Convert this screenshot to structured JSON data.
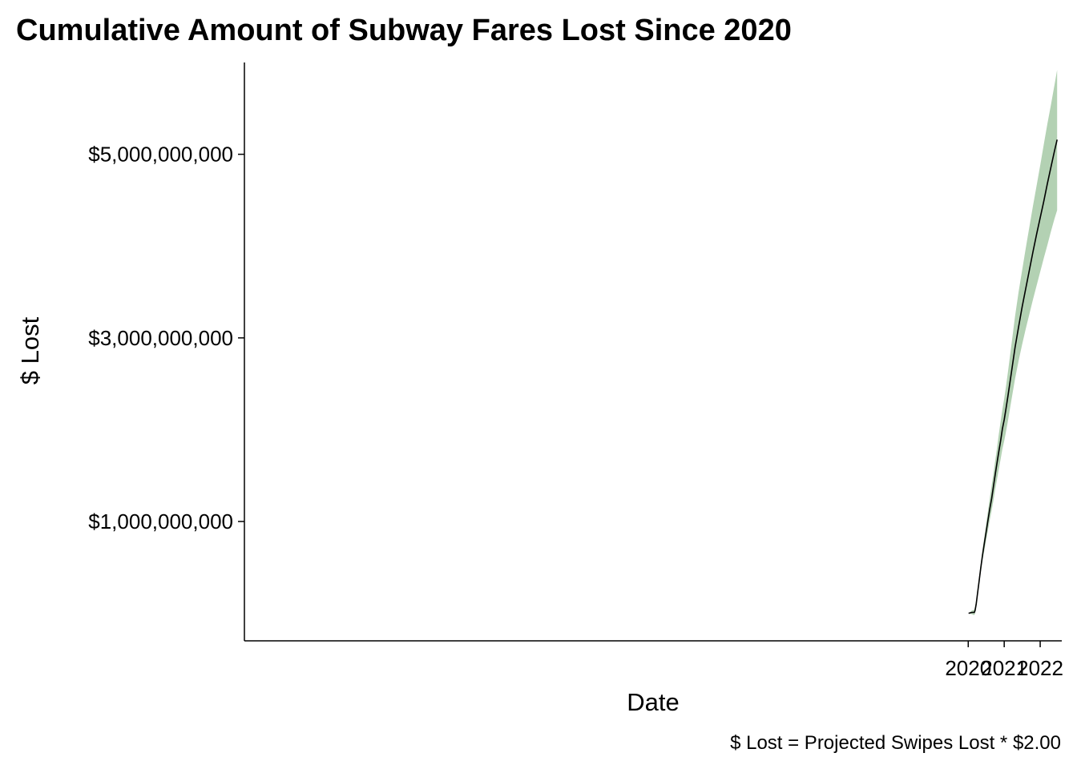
{
  "chart_data": {
    "type": "area",
    "title": "Cumulative Amount of Subway Fares Lost Since 2020",
    "xlabel": "Date",
    "ylabel": "$ Lost",
    "caption": "$ Lost = Projected Swipes Lost * $2.00",
    "x_ticks": [
      {
        "value": 2020,
        "label": "2020"
      },
      {
        "value": 2021,
        "label": "2021"
      },
      {
        "value": 2022,
        "label": "2022"
      }
    ],
    "y_ticks": [
      {
        "value": 1000000000,
        "label": "$1,000,000,000"
      },
      {
        "value": 3000000000,
        "label": "$3,000,000,000"
      },
      {
        "value": 5000000000,
        "label": "$5,000,000,000"
      }
    ],
    "xlim": [
      1999.88,
      2022.6
    ],
    "ylim": [
      -300000000,
      6000000000
    ],
    "grid": false,
    "colors": {
      "band": "#b3d1b3",
      "line": "#000000"
    },
    "series": [
      {
        "x": [
          2020.01,
          2020.1,
          2020.17,
          2020.19,
          2020.22,
          2020.25,
          2020.3,
          2020.35,
          2020.4,
          2020.45,
          2020.5,
          2020.55,
          2020.6,
          2020.65,
          2020.7,
          2020.75,
          2020.8,
          2020.85,
          2020.9,
          2020.95,
          2021.0,
          2021.05,
          2021.1,
          2021.2,
          2021.3,
          2021.4,
          2021.5,
          2021.6,
          2021.7,
          2021.8,
          2021.9,
          2022.0,
          2022.1,
          2022.2,
          2022.3,
          2022.4,
          2022.47
        ],
        "y": [
          0,
          10000000,
          10000000,
          30000000,
          100000000,
          190000000,
          340000000,
          500000000,
          640000000,
          770000000,
          890000000,
          1020000000,
          1140000000,
          1250000000,
          1380000000,
          1510000000,
          1640000000,
          1760000000,
          1880000000,
          2010000000,
          2110000000,
          2230000000,
          2360000000,
          2620000000,
          2890000000,
          3120000000,
          3340000000,
          3540000000,
          3740000000,
          3940000000,
          4130000000,
          4310000000,
          4490000000,
          4680000000,
          4860000000,
          5040000000,
          5160000000
        ],
        "lower": [
          0,
          -10000000,
          -20000000,
          0,
          70000000,
          160000000,
          300000000,
          450000000,
          580000000,
          690000000,
          800000000,
          910000000,
          1020000000,
          1120000000,
          1230000000,
          1350000000,
          1460000000,
          1570000000,
          1680000000,
          1790000000,
          1880000000,
          1980000000,
          2090000000,
          2320000000,
          2550000000,
          2750000000,
          2930000000,
          3100000000,
          3260000000,
          3420000000,
          3570000000,
          3720000000,
          3870000000,
          4010000000,
          4160000000,
          4300000000,
          4390000000
        ],
        "upper": [
          0,
          30000000,
          40000000,
          70000000,
          140000000,
          240000000,
          390000000,
          550000000,
          700000000,
          840000000,
          980000000,
          1120000000,
          1260000000,
          1390000000,
          1520000000,
          1660000000,
          1800000000,
          1950000000,
          2090000000,
          2220000000,
          2340000000,
          2470000000,
          2620000000,
          2920000000,
          3230000000,
          3500000000,
          3740000000,
          3980000000,
          4210000000,
          4440000000,
          4660000000,
          4880000000,
          5110000000,
          5330000000,
          5540000000,
          5760000000,
          5920000000
        ]
      }
    ]
  }
}
